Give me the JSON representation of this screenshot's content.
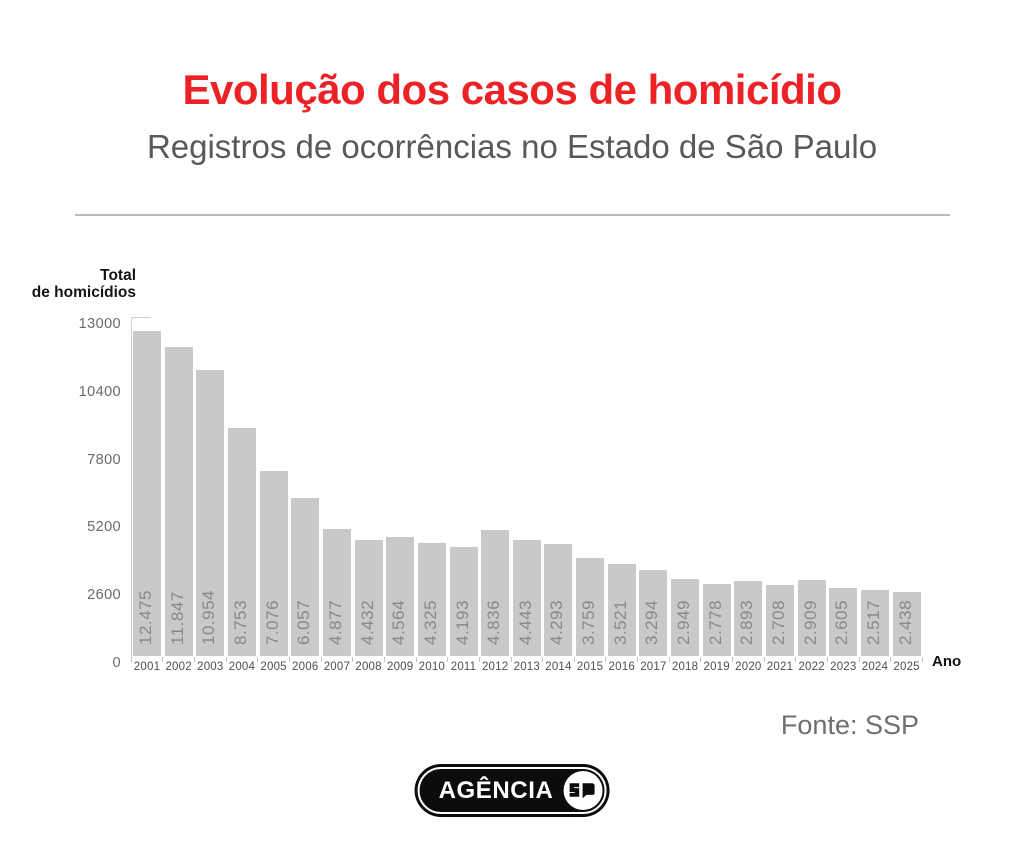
{
  "header": {
    "title": "Evolução dos casos de homicídio",
    "subtitle": "Registros de ocorrências no Estado de São Paulo"
  },
  "chart_data": {
    "type": "bar",
    "title": "Evolução dos casos de homicídio",
    "subtitle": "Registros de ocorrências no Estado de São Paulo",
    "xlabel": "Ano",
    "ylabel": "Total de homicídios",
    "ylabel_lines": [
      "Total",
      "de homicídios"
    ],
    "categories": [
      "2001",
      "2002",
      "2003",
      "2004",
      "2005",
      "2006",
      "2007",
      "2008",
      "2009",
      "2010",
      "2011",
      "2012",
      "2013",
      "2014",
      "2015",
      "2016",
      "2017",
      "2018",
      "2019",
      "2020",
      "2021",
      "2022",
      "2023",
      "2024",
      "2025"
    ],
    "values": [
      12475,
      11847,
      10954,
      8753,
      7076,
      6057,
      4877,
      4432,
      4564,
      4325,
      4193,
      4836,
      4443,
      4293,
      3759,
      3521,
      3294,
      2949,
      2778,
      2893,
      2708,
      2909,
      2605,
      2517,
      2438
    ],
    "value_labels": [
      "12.475",
      "11.847",
      "10.954",
      "8.753",
      "7.076",
      "6.057",
      "4.877",
      "4.432",
      "4.564",
      "4.325",
      "4.193",
      "4.836",
      "4.443",
      "4.293",
      "3.759",
      "3.521",
      "3.294",
      "2.949",
      "2.778",
      "2.893",
      "2.708",
      "2.909",
      "2.605",
      "2.517",
      "2.438"
    ],
    "yticks": [
      0,
      2600,
      5200,
      7800,
      10400,
      13000
    ],
    "ylim": [
      0,
      13000
    ],
    "grid": false,
    "legend": "none",
    "bar_color": "#c9c9c9",
    "value_label_color": "#888888"
  },
  "footer": {
    "source": "Fonte: SSP",
    "logo": {
      "text": "AGÊNCIA",
      "icon": "sp-speech-bubble-icon"
    }
  },
  "colors": {
    "title": "#ed2227",
    "subtitle": "#58595b",
    "axis_text": "#6a6a6a",
    "axis_line": "#cfcfcf",
    "bar": "#c9c9c9",
    "bar_value_text": "#888888",
    "year_text": "#4f4f4f",
    "source_text": "#6f6f6f",
    "logo_bg": "#0c0c0c",
    "logo_fg": "#ffffff"
  }
}
